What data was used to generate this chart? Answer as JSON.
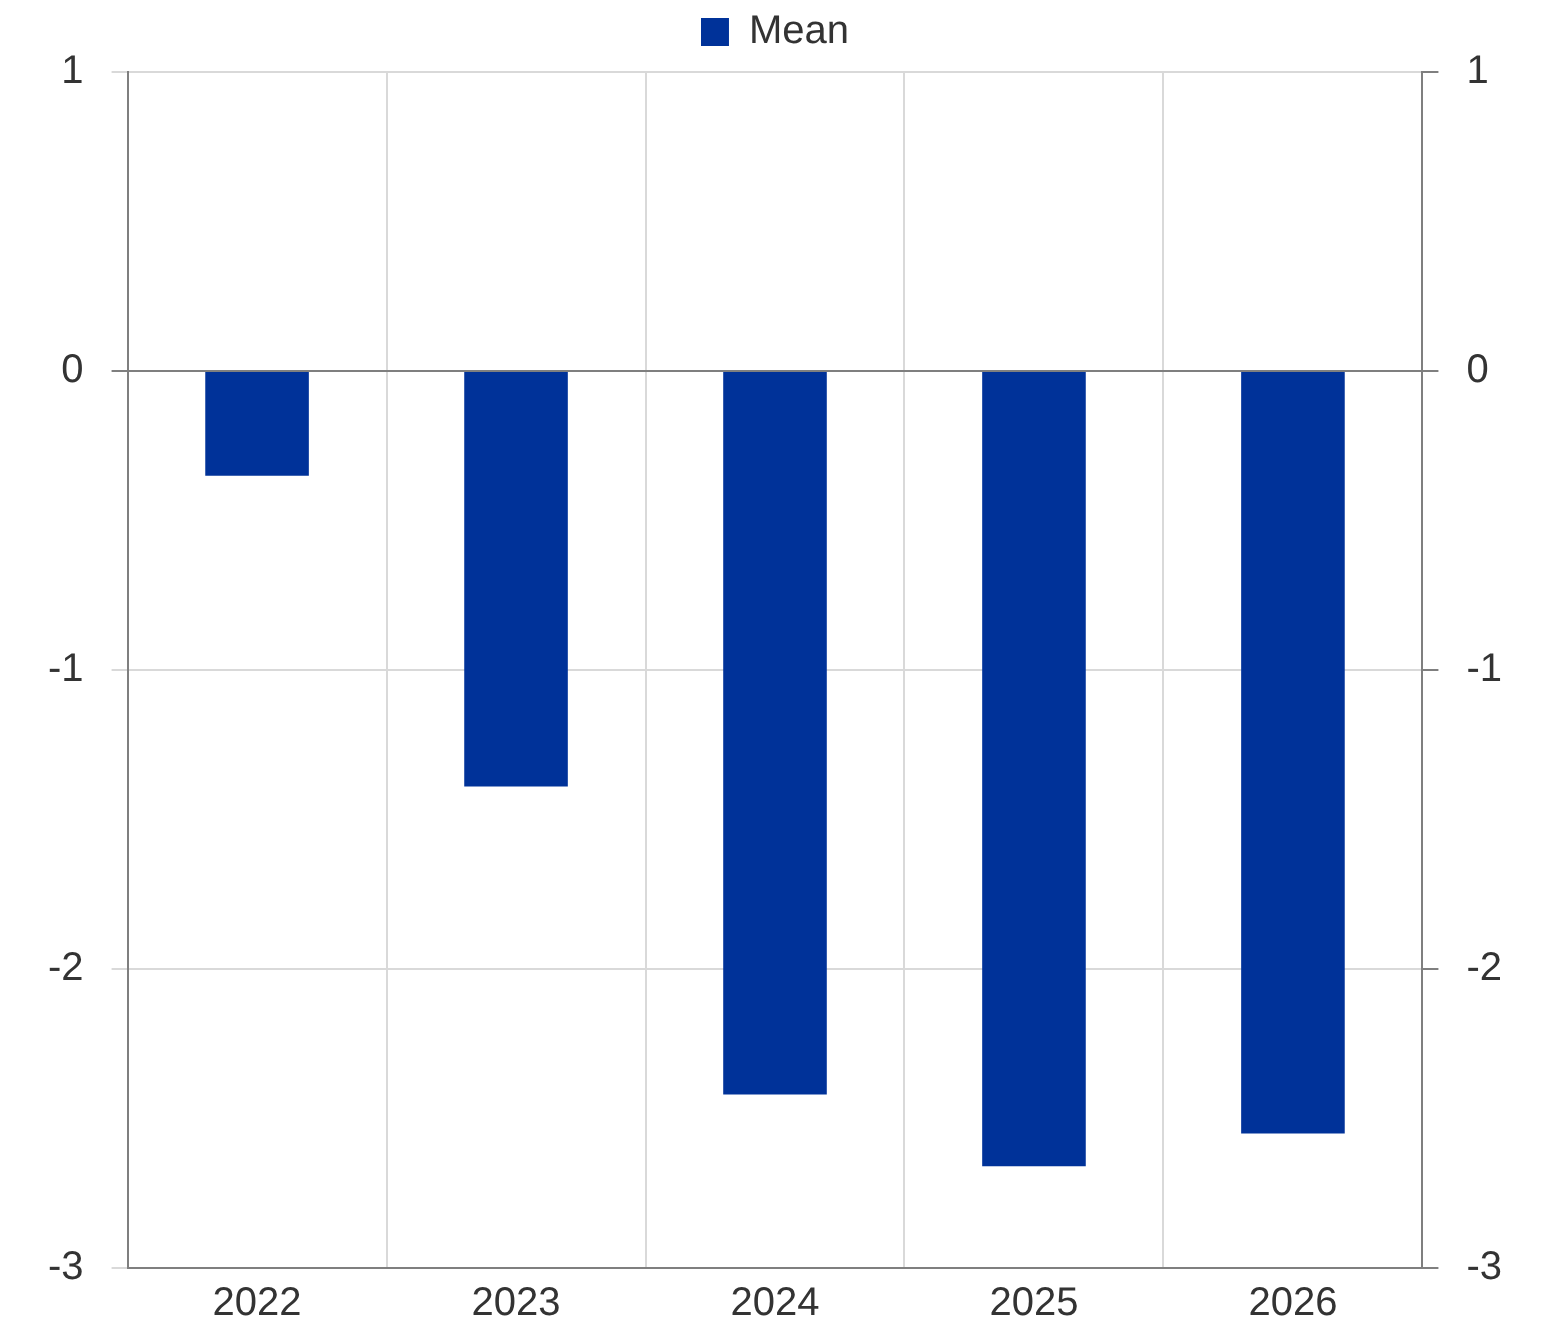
{
  "chart_data": {
    "type": "bar",
    "categories": [
      "2022",
      "2023",
      "2024",
      "2025",
      "2026"
    ],
    "series": [
      {
        "name": "Mean",
        "color": "#003299",
        "values": [
          -0.35,
          -1.39,
          -2.42,
          -2.66,
          -2.55
        ]
      }
    ],
    "ylim": [
      -3,
      1
    ],
    "yticks": [
      -3,
      -2,
      -1,
      0,
      1
    ],
    "y2lim": [
      -3,
      1
    ],
    "y2ticks": [
      -3,
      -2,
      -1,
      0,
      1
    ],
    "grid": true,
    "legend": "top"
  }
}
